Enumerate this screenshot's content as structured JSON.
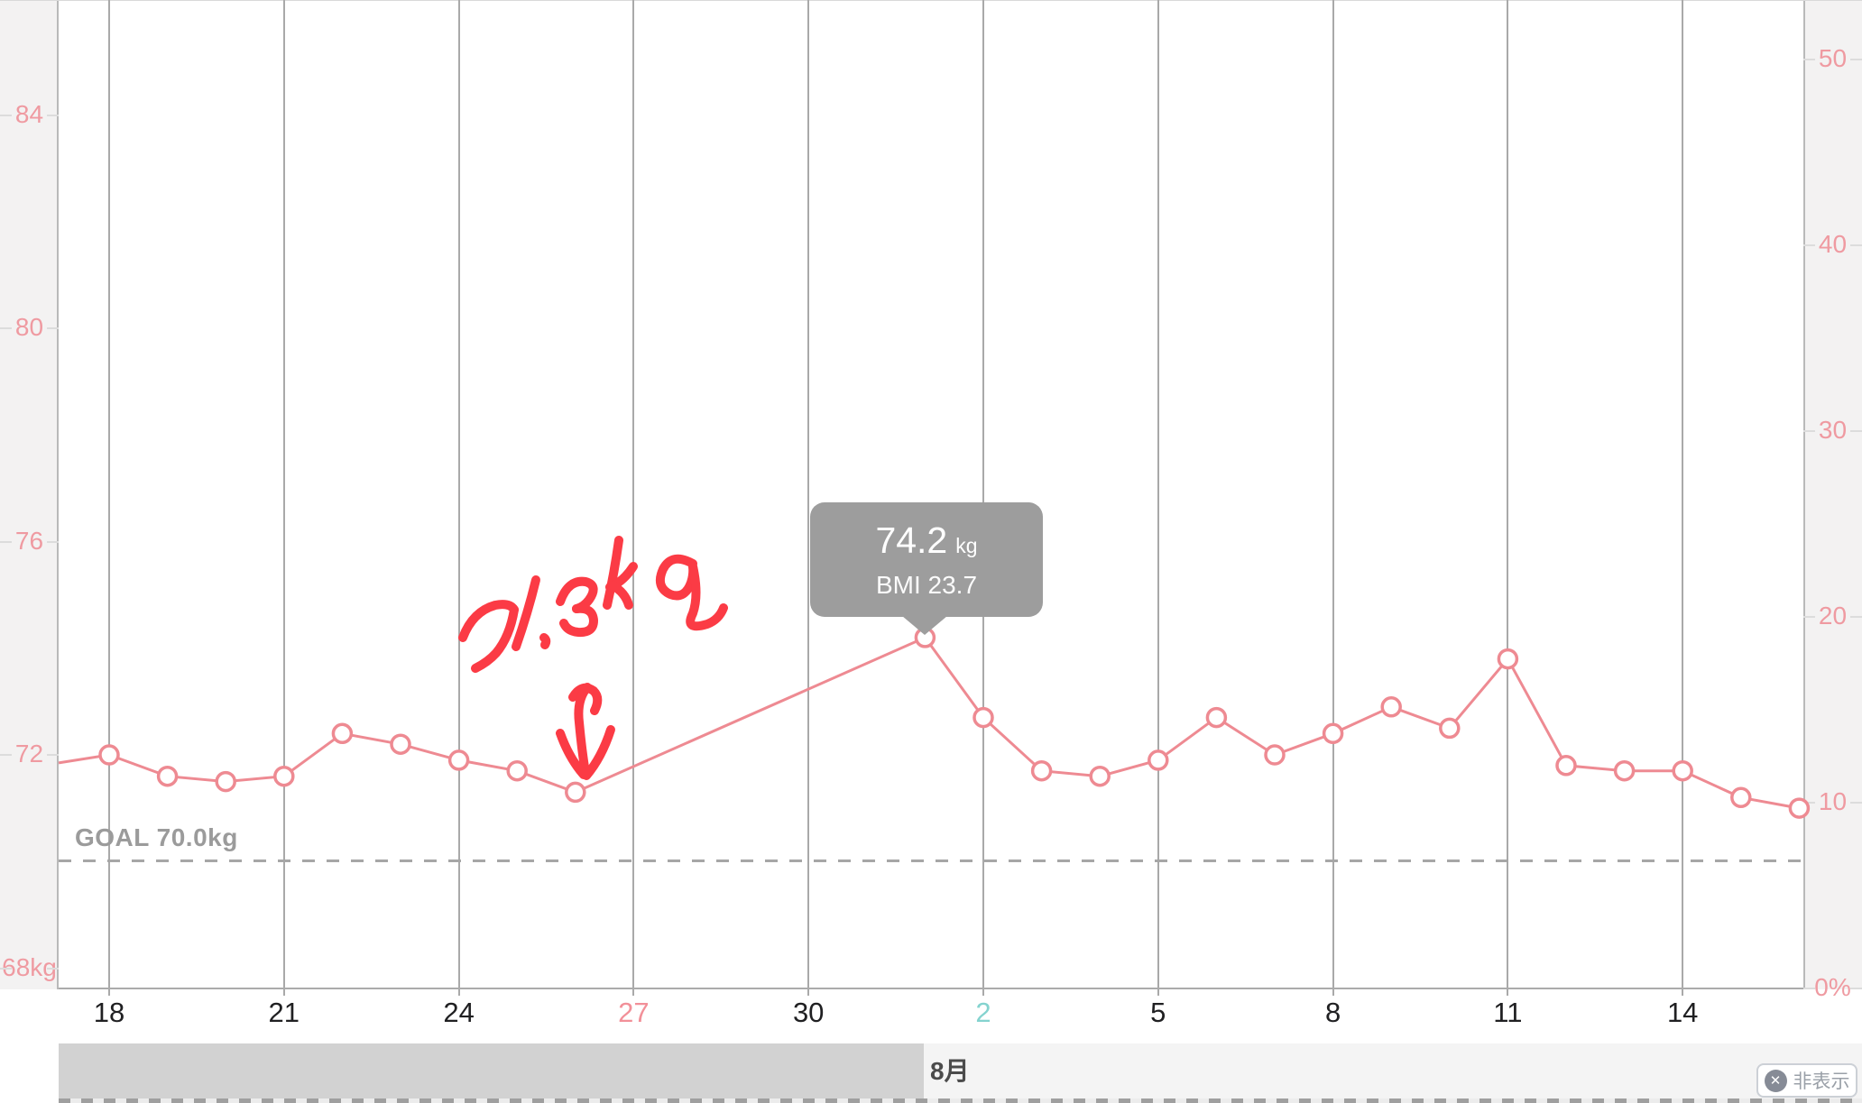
{
  "chart_data": {
    "type": "line",
    "title": "",
    "series": [
      {
        "name": "weight",
        "unit": "kg",
        "points": [
          {
            "date": "7/18",
            "d": 0,
            "kg": 72.0
          },
          {
            "date": "7/19",
            "d": 1,
            "kg": 71.6
          },
          {
            "date": "7/20",
            "d": 2,
            "kg": 71.5
          },
          {
            "date": "7/21",
            "d": 3,
            "kg": 71.6
          },
          {
            "date": "7/22",
            "d": 4,
            "kg": 72.4
          },
          {
            "date": "7/23",
            "d": 5,
            "kg": 72.2
          },
          {
            "date": "7/24",
            "d": 6,
            "kg": 71.9
          },
          {
            "date": "7/25",
            "d": 7,
            "kg": 71.7
          },
          {
            "date": "7/26",
            "d": 8,
            "kg": 71.3
          },
          {
            "date": "8/1",
            "d": 14,
            "kg": 74.2,
            "selected": true
          },
          {
            "date": "8/2",
            "d": 15,
            "kg": 72.7
          },
          {
            "date": "8/3",
            "d": 16,
            "kg": 71.7
          },
          {
            "date": "8/4",
            "d": 17,
            "kg": 71.6
          },
          {
            "date": "8/5",
            "d": 18,
            "kg": 71.9
          },
          {
            "date": "8/6",
            "d": 19,
            "kg": 72.7
          },
          {
            "date": "8/7",
            "d": 20,
            "kg": 72.0
          },
          {
            "date": "8/8",
            "d": 21,
            "kg": 72.4
          },
          {
            "date": "8/9",
            "d": 22,
            "kg": 72.9
          },
          {
            "date": "8/10",
            "d": 23,
            "kg": 72.5
          },
          {
            "date": "8/11",
            "d": 24,
            "kg": 73.8
          },
          {
            "date": "8/12",
            "d": 25,
            "kg": 71.8
          },
          {
            "date": "8/13",
            "d": 26,
            "kg": 71.7
          },
          {
            "date": "8/14",
            "d": 27,
            "kg": 71.7
          },
          {
            "date": "8/15",
            "d": 28,
            "kg": 71.2
          },
          {
            "date": "8/16",
            "d": 29,
            "kg": 71.0
          }
        ],
        "lead_in_kg_at_left_edge": 71.85,
        "gap_no_data": [
          "7/27",
          "7/28",
          "7/29",
          "7/30",
          "7/31"
        ]
      }
    ],
    "x_ticks": [
      {
        "label": "18",
        "d": 0,
        "weekday": "wk"
      },
      {
        "label": "21",
        "d": 3,
        "weekday": "wk"
      },
      {
        "label": "24",
        "d": 6,
        "weekday": "wk"
      },
      {
        "label": "27",
        "d": 9,
        "weekday": "sun"
      },
      {
        "label": "30",
        "d": 12,
        "weekday": "wk"
      },
      {
        "label": "2",
        "d": 15,
        "weekday": "sat"
      },
      {
        "label": "5",
        "d": 18,
        "weekday": "wk"
      },
      {
        "label": "8",
        "d": 21,
        "weekday": "wk"
      },
      {
        "label": "11",
        "d": 24,
        "weekday": "wk"
      },
      {
        "label": "14",
        "d": 27,
        "weekday": "wk"
      }
    ],
    "y_left": {
      "unit": "kg",
      "values": [
        84,
        80,
        76,
        72,
        68
      ],
      "labels": [
        "84",
        "80",
        "76",
        "72",
        "68kg"
      ]
    },
    "y_right": {
      "unit": "%",
      "values": [
        50,
        40,
        30,
        20,
        10,
        0
      ],
      "labels": [
        "50",
        "40",
        "30",
        "20",
        "10",
        "0%"
      ]
    },
    "goal": {
      "label": "GOAL 70.0kg",
      "kg": 70.0
    },
    "grid": "vertical-only",
    "legend": "none"
  },
  "tooltip": {
    "value": "74.2",
    "unit": "kg",
    "detail": "BMI 23.7"
  },
  "annotation": {
    "text": "71.3 kg",
    "style": "handwritten-red-marker",
    "points_to": "7/26"
  },
  "bottom_bar": {
    "month_label": "8月"
  },
  "hide_button": {
    "label": "非表示",
    "icon": "x-circle"
  },
  "colors": {
    "line": "#ee8a92",
    "marker_fill": "#ffffff",
    "y_axis_label": "#ef9aa1",
    "x_label_default": "#202022",
    "x_label_sunday": "#f29099",
    "x_label_saturday": "#84d3cf",
    "gridline": "#a9a9a9",
    "goal": "#a6a6a6",
    "tooltip_bg": "#9d9d9d",
    "annotation_red": "#fb3b45",
    "bar_fill": "#d2d2d2",
    "bar_bg": "#f4f4f4",
    "margin_bg": "#f3f2f2"
  }
}
